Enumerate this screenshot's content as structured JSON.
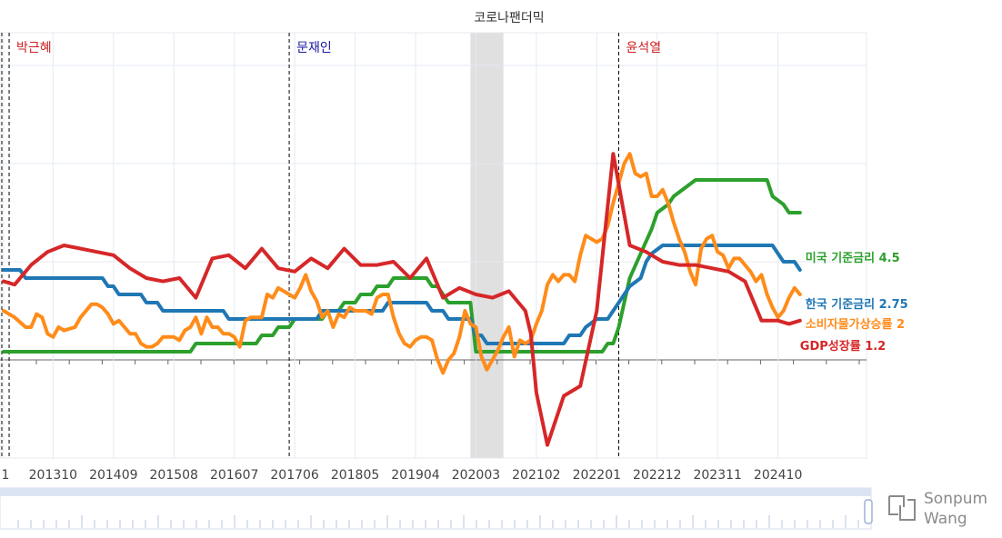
{
  "chart_data": {
    "type": "line",
    "title": "코로나팬더믹",
    "xlabel": "",
    "ylabel": "",
    "x_tick_labels": [
      "1",
      "201310",
      "201409",
      "201508",
      "201607",
      "201706",
      "201805",
      "201904",
      "202003",
      "202102",
      "202201",
      "202212",
      "202311",
      "202410"
    ],
    "ylim": [
      -3,
      10
    ],
    "grid": true,
    "legend": "inline labels at right end of each series",
    "shaded_periods": [
      {
        "label": "코로나팬더믹",
        "start": "2020-02",
        "end": "2020-08",
        "color": "#e0e0e0"
      }
    ],
    "presidents": [
      {
        "name": "박근혜",
        "start": "2013-02",
        "color": "#cc2222"
      },
      {
        "name": "문재인",
        "start": "2017-05",
        "color": "#1a1aa6"
      },
      {
        "name": "윤석열",
        "start": "2022-05",
        "color": "#cc2222"
      }
    ],
    "series": [
      {
        "name": "미국 기준금리",
        "label": "미국 기준금리 4.5",
        "color": "#2ca02c",
        "points": [
          [
            "2013-01",
            0.25
          ],
          [
            "2015-11",
            0.25
          ],
          [
            "2015-12",
            0.5
          ],
          [
            "2016-11",
            0.5
          ],
          [
            "2016-12",
            0.75
          ],
          [
            "2017-02",
            0.75
          ],
          [
            "2017-03",
            1.0
          ],
          [
            "2017-05",
            1.0
          ],
          [
            "2017-06",
            1.25
          ],
          [
            "2017-11",
            1.25
          ],
          [
            "2017-12",
            1.5
          ],
          [
            "2018-02",
            1.5
          ],
          [
            "2018-03",
            1.75
          ],
          [
            "2018-05",
            1.75
          ],
          [
            "2018-06",
            2.0
          ],
          [
            "2018-08",
            2.0
          ],
          [
            "2018-09",
            2.25
          ],
          [
            "2018-11",
            2.25
          ],
          [
            "2018-12",
            2.5
          ],
          [
            "2019-06",
            2.5
          ],
          [
            "2019-07",
            2.25
          ],
          [
            "2019-08",
            2.25
          ],
          [
            "2019-09",
            2.0
          ],
          [
            "2019-09",
            2.0
          ],
          [
            "2019-10",
            1.75
          ],
          [
            "2020-02",
            1.75
          ],
          [
            "2020-03",
            0.25
          ],
          [
            "2022-02",
            0.25
          ],
          [
            "2022-03",
            0.5
          ],
          [
            "2022-04",
            0.5
          ],
          [
            "2022-05",
            1.0
          ],
          [
            "2022-06",
            1.75
          ],
          [
            "2022-07",
            2.5
          ],
          [
            "2022-09",
            3.25
          ],
          [
            "2022-11",
            4.0
          ],
          [
            "2022-12",
            4.5
          ],
          [
            "2023-02",
            4.75
          ],
          [
            "2023-03",
            5.0
          ],
          [
            "2023-05",
            5.25
          ],
          [
            "2023-07",
            5.5
          ],
          [
            "2024-08",
            5.5
          ],
          [
            "2024-09",
            5.0
          ],
          [
            "2024-11",
            4.75
          ],
          [
            "2024-12",
            4.5
          ],
          [
            "2025-02",
            4.5
          ]
        ]
      },
      {
        "name": "한국 기준금리",
        "label": "한국 기준금리 2.75",
        "color": "#1f77b4",
        "points": [
          [
            "2013-01",
            2.75
          ],
          [
            "2013-04",
            2.75
          ],
          [
            "2013-05",
            2.5
          ],
          [
            "2014-07",
            2.5
          ],
          [
            "2014-08",
            2.25
          ],
          [
            "2014-09",
            2.25
          ],
          [
            "2014-10",
            2.0
          ],
          [
            "2015-02",
            2.0
          ],
          [
            "2015-03",
            1.75
          ],
          [
            "2015-05",
            1.75
          ],
          [
            "2015-06",
            1.5
          ],
          [
            "2016-05",
            1.5
          ],
          [
            "2016-06",
            1.25
          ],
          [
            "2017-10",
            1.25
          ],
          [
            "2017-11",
            1.5
          ],
          [
            "2018-10",
            1.5
          ],
          [
            "2018-11",
            1.75
          ],
          [
            "2019-06",
            1.75
          ],
          [
            "2019-07",
            1.5
          ],
          [
            "2019-09",
            1.5
          ],
          [
            "2019-10",
            1.25
          ],
          [
            "2020-02",
            1.25
          ],
          [
            "2020-03",
            0.75
          ],
          [
            "2020-04",
            0.75
          ],
          [
            "2020-05",
            0.5
          ],
          [
            "2021-07",
            0.5
          ],
          [
            "2021-08",
            0.75
          ],
          [
            "2021-10",
            0.75
          ],
          [
            "2021-11",
            1.0
          ],
          [
            "2022-01",
            1.25
          ],
          [
            "2022-03",
            1.25
          ],
          [
            "2022-04",
            1.5
          ],
          [
            "2022-05",
            1.75
          ],
          [
            "2022-07",
            2.25
          ],
          [
            "2022-09",
            2.5
          ],
          [
            "2022-10",
            3.0
          ],
          [
            "2022-11",
            3.25
          ],
          [
            "2023-01",
            3.5
          ],
          [
            "2024-09",
            3.5
          ],
          [
            "2024-10",
            3.25
          ],
          [
            "2024-11",
            3.0
          ],
          [
            "2025-01",
            3.0
          ],
          [
            "2025-02",
            2.75
          ]
        ]
      },
      {
        "name": "소비자물가상승률",
        "label": "소비자물가상승률 2",
        "color": "#ff8c1a",
        "points": [
          [
            "2013-01",
            1.5
          ],
          [
            "2013-03",
            1.3
          ],
          [
            "2013-05",
            1.0
          ],
          [
            "2013-06",
            1.0
          ],
          [
            "2013-07",
            1.4
          ],
          [
            "2013-08",
            1.3
          ],
          [
            "2013-09",
            0.8
          ],
          [
            "2013-10",
            0.7
          ],
          [
            "2013-11",
            1.0
          ],
          [
            "2013-12",
            0.9
          ],
          [
            "2014-02",
            1.0
          ],
          [
            "2014-03",
            1.3
          ],
          [
            "2014-05",
            1.7
          ],
          [
            "2014-06",
            1.7
          ],
          [
            "2014-07",
            1.6
          ],
          [
            "2014-08",
            1.4
          ],
          [
            "2014-09",
            1.1
          ],
          [
            "2014-10",
            1.2
          ],
          [
            "2014-11",
            1.0
          ],
          [
            "2014-12",
            0.8
          ],
          [
            "2015-01",
            0.8
          ],
          [
            "2015-02",
            0.5
          ],
          [
            "2015-03",
            0.4
          ],
          [
            "2015-04",
            0.4
          ],
          [
            "2015-05",
            0.5
          ],
          [
            "2015-06",
            0.7
          ],
          [
            "2015-07",
            0.7
          ],
          [
            "2015-08",
            0.7
          ],
          [
            "2015-09",
            0.6
          ],
          [
            "2015-10",
            0.9
          ],
          [
            "2015-11",
            1.0
          ],
          [
            "2015-12",
            1.3
          ],
          [
            "2016-01",
            0.8
          ],
          [
            "2016-02",
            1.3
          ],
          [
            "2016-03",
            1.0
          ],
          [
            "2016-04",
            1.0
          ],
          [
            "2016-05",
            0.8
          ],
          [
            "2016-06",
            0.8
          ],
          [
            "2016-07",
            0.7
          ],
          [
            "2016-08",
            0.4
          ],
          [
            "2016-09",
            1.2
          ],
          [
            "2016-10",
            1.3
          ],
          [
            "2016-11",
            1.3
          ],
          [
            "2016-12",
            1.3
          ],
          [
            "2017-01",
            2.0
          ],
          [
            "2017-02",
            1.9
          ],
          [
            "2017-03",
            2.2
          ],
          [
            "2017-05",
            2.0
          ],
          [
            "2017-06",
            1.9
          ],
          [
            "2017-07",
            2.2
          ],
          [
            "2017-08",
            2.6
          ],
          [
            "2017-09",
            2.1
          ],
          [
            "2017-10",
            1.8
          ],
          [
            "2017-11",
            1.3
          ],
          [
            "2017-12",
            1.5
          ],
          [
            "2018-01",
            1.0
          ],
          [
            "2018-02",
            1.4
          ],
          [
            "2018-03",
            1.3
          ],
          [
            "2018-04",
            1.6
          ],
          [
            "2018-05",
            1.5
          ],
          [
            "2018-06",
            1.5
          ],
          [
            "2018-07",
            1.5
          ],
          [
            "2018-08",
            1.4
          ],
          [
            "2018-09",
            1.9
          ],
          [
            "2018-10",
            2.0
          ],
          [
            "2018-11",
            2.0
          ],
          [
            "2018-12",
            1.3
          ],
          [
            "2019-01",
            0.8
          ],
          [
            "2019-02",
            0.5
          ],
          [
            "2019-03",
            0.4
          ],
          [
            "2019-04",
            0.6
          ],
          [
            "2019-05",
            0.7
          ],
          [
            "2019-06",
            0.7
          ],
          [
            "2019-07",
            0.6
          ],
          [
            "2019-08",
            0.0
          ],
          [
            "2019-09",
            -0.4
          ],
          [
            "2019-10",
            0.0
          ],
          [
            "2019-11",
            0.2
          ],
          [
            "2019-12",
            0.7
          ],
          [
            "2020-01",
            1.5
          ],
          [
            "2020-02",
            1.1
          ],
          [
            "2020-03",
            1.0
          ],
          [
            "2020-04",
            0.1
          ],
          [
            "2020-05",
            -0.3
          ],
          [
            "2020-06",
            0.0
          ],
          [
            "2020-07",
            0.3
          ],
          [
            "2020-08",
            0.7
          ],
          [
            "2020-09",
            1.0
          ],
          [
            "2020-10",
            0.1
          ],
          [
            "2020-11",
            0.6
          ],
          [
            "2020-12",
            0.5
          ],
          [
            "2021-01",
            0.6
          ],
          [
            "2021-02",
            1.1
          ],
          [
            "2021-03",
            1.5
          ],
          [
            "2021-04",
            2.3
          ],
          [
            "2021-05",
            2.6
          ],
          [
            "2021-06",
            2.4
          ],
          [
            "2021-07",
            2.6
          ],
          [
            "2021-08",
            2.6
          ],
          [
            "2021-09",
            2.4
          ],
          [
            "2021-10",
            3.2
          ],
          [
            "2021-11",
            3.8
          ],
          [
            "2021-12",
            3.7
          ],
          [
            "2022-01",
            3.6
          ],
          [
            "2022-02",
            3.7
          ],
          [
            "2022-03",
            4.1
          ],
          [
            "2022-04",
            4.8
          ],
          [
            "2022-05",
            5.4
          ],
          [
            "2022-06",
            6.0
          ],
          [
            "2022-07",
            6.3
          ],
          [
            "2022-08",
            5.7
          ],
          [
            "2022-09",
            5.6
          ],
          [
            "2022-10",
            5.7
          ],
          [
            "2022-11",
            5.0
          ],
          [
            "2022-12",
            5.0
          ],
          [
            "2023-01",
            5.2
          ],
          [
            "2023-02",
            4.8
          ],
          [
            "2023-03",
            4.2
          ],
          [
            "2023-04",
            3.7
          ],
          [
            "2023-05",
            3.3
          ],
          [
            "2023-06",
            2.7
          ],
          [
            "2023-07",
            2.3
          ],
          [
            "2023-08",
            3.4
          ],
          [
            "2023-09",
            3.7
          ],
          [
            "2023-10",
            3.8
          ],
          [
            "2023-11",
            3.3
          ],
          [
            "2023-12",
            3.2
          ],
          [
            "2024-01",
            2.8
          ],
          [
            "2024-02",
            3.1
          ],
          [
            "2024-03",
            3.1
          ],
          [
            "2024-04",
            2.9
          ],
          [
            "2024-05",
            2.7
          ],
          [
            "2024-06",
            2.4
          ],
          [
            "2024-07",
            2.6
          ],
          [
            "2024-08",
            2.0
          ],
          [
            "2024-09",
            1.6
          ],
          [
            "2024-10",
            1.3
          ],
          [
            "2024-11",
            1.5
          ],
          [
            "2024-12",
            1.9
          ],
          [
            "2025-01",
            2.2
          ],
          [
            "2025-02",
            2.0
          ]
        ]
      },
      {
        "name": "GDP성장률",
        "label": "GDP성장률 1.2",
        "color": "#d62728",
        "points": [
          [
            "2013-01",
            2.4
          ],
          [
            "2013-03",
            2.3
          ],
          [
            "2013-06",
            2.9
          ],
          [
            "2013-09",
            3.3
          ],
          [
            "2013-12",
            3.5
          ],
          [
            "2014-03",
            3.4
          ],
          [
            "2014-06",
            3.3
          ],
          [
            "2014-09",
            3.2
          ],
          [
            "2014-12",
            2.8
          ],
          [
            "2015-03",
            2.5
          ],
          [
            "2015-06",
            2.4
          ],
          [
            "2015-09",
            2.5
          ],
          [
            "2015-12",
            1.9
          ],
          [
            "2016-03",
            3.1
          ],
          [
            "2016-06",
            3.2
          ],
          [
            "2016-09",
            2.8
          ],
          [
            "2016-12",
            3.4
          ],
          [
            "2017-03",
            2.8
          ],
          [
            "2017-06",
            2.7
          ],
          [
            "2017-09",
            3.1
          ],
          [
            "2017-12",
            2.8
          ],
          [
            "2018-03",
            3.4
          ],
          [
            "2018-06",
            2.9
          ],
          [
            "2018-09",
            2.9
          ],
          [
            "2018-12",
            3.0
          ],
          [
            "2019-03",
            2.5
          ],
          [
            "2019-06",
            3.1
          ],
          [
            "2019-09",
            1.9
          ],
          [
            "2019-12",
            2.2
          ],
          [
            "2020-03",
            2.0
          ],
          [
            "2020-06",
            1.9
          ],
          [
            "2020-09",
            2.1
          ],
          [
            "2020-12",
            1.5
          ],
          [
            "2021-01",
            0.8
          ],
          [
            "2021-02",
            -1.0
          ],
          [
            "2021-04",
            -2.6
          ],
          [
            "2021-07",
            -1.1
          ],
          [
            "2021-10",
            -0.8
          ],
          [
            "2022-01",
            1.5
          ],
          [
            "2022-04",
            6.3
          ],
          [
            "2022-07",
            3.5
          ],
          [
            "2022-10",
            3.3
          ],
          [
            "2023-01",
            3.0
          ],
          [
            "2023-04",
            2.9
          ],
          [
            "2023-07",
            2.9
          ],
          [
            "2023-10",
            2.8
          ],
          [
            "2024-01",
            2.7
          ],
          [
            "2024-04",
            2.4
          ],
          [
            "2024-07",
            1.2
          ],
          [
            "2024-10",
            1.2
          ],
          [
            "2024-12",
            1.1
          ],
          [
            "2025-02",
            1.2
          ]
        ]
      }
    ]
  },
  "watermark": {
    "line1": "Sonpum",
    "line2": "Wang"
  }
}
